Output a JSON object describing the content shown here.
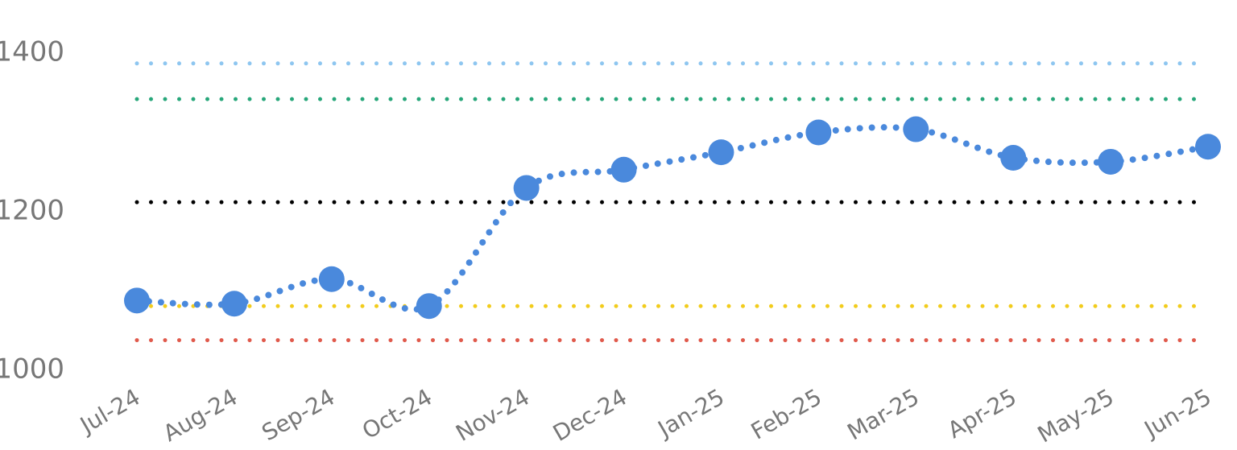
{
  "chart_data": {
    "type": "line",
    "categories": [
      "Jul-24",
      "Aug-24",
      "Sep-24",
      "Oct-24",
      "Nov-24",
      "Dec-24",
      "Jan-25",
      "Feb-25",
      "Mar-25",
      "Apr-25",
      "May-25",
      "Jun-25"
    ],
    "series": [
      {
        "color": "#4a89dc",
        "values": [
          1088,
          1084,
          1115,
          1081,
          1230,
          1253,
          1275,
          1300,
          1304,
          1268,
          1263,
          1282
        ]
      }
    ],
    "reference_lines": [
      {
        "value": 1387,
        "color": "#8ec6f0"
      },
      {
        "value": 1342,
        "color": "#27a77a"
      },
      {
        "value": 1212,
        "color": "#000000"
      },
      {
        "value": 1081,
        "color": "#f2cc1c"
      },
      {
        "value": 1038,
        "color": "#e05a4c"
      }
    ],
    "ylim": [
      1000,
      1400
    ],
    "yticks": [
      1000,
      1200,
      1400
    ],
    "grid": false
  }
}
